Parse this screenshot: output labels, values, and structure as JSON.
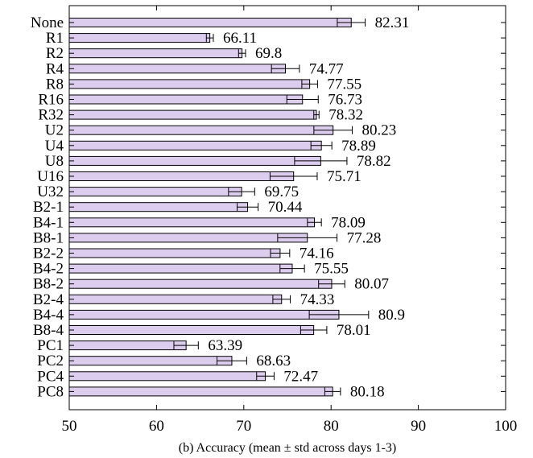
{
  "chart_data": {
    "type": "bar",
    "orientation": "horizontal",
    "categories": [
      "None",
      "R1",
      "R2",
      "R4",
      "R8",
      "R16",
      "R32",
      "U2",
      "U4",
      "U8",
      "U16",
      "U32",
      "B2-1",
      "B4-1",
      "B8-1",
      "B2-2",
      "B4-2",
      "B8-2",
      "B2-4",
      "B4-4",
      "B8-4",
      "PC1",
      "PC2",
      "PC4",
      "PC8"
    ],
    "values": [
      82.31,
      66.11,
      69.8,
      74.77,
      77.55,
      76.73,
      78.32,
      80.23,
      78.89,
      78.82,
      75.71,
      69.75,
      70.44,
      78.09,
      77.28,
      74.16,
      75.55,
      80.07,
      74.33,
      80.9,
      78.01,
      63.39,
      68.63,
      72.47,
      80.18
    ],
    "value_labels": [
      "82.31",
      "66.11",
      "69.8",
      "74.77",
      "77.55",
      "76.73",
      "78.32",
      "80.23",
      "78.89",
      "78.82",
      "75.71",
      "69.75",
      "70.44",
      "78.09",
      "77.28",
      "74.16",
      "75.55",
      "80.07",
      "74.33",
      "80.9",
      "78.01",
      "63.39",
      "68.63",
      "72.47",
      "80.18"
    ],
    "errors": [
      1.6,
      0.4,
      0.4,
      1.6,
      0.9,
      1.8,
      0.3,
      2.2,
      1.2,
      3.0,
      2.7,
      1.5,
      1.2,
      0.8,
      3.4,
      1.1,
      1.4,
      1.5,
      1.0,
      3.4,
      1.5,
      1.4,
      1.7,
      1.0,
      0.9
    ],
    "xlim": [
      50,
      100
    ],
    "xticks": [
      50,
      60,
      70,
      80,
      90,
      100
    ],
    "xtick_labels": [
      "50",
      "60",
      "70",
      "80",
      "90",
      "100"
    ],
    "xlabel": "(b) Accuracy (mean ± std across days 1-3)",
    "ylabel": "",
    "title": "",
    "bar_color": "#dccdee",
    "bar_stroke": "#000000",
    "grid": false,
    "legend": false
  }
}
